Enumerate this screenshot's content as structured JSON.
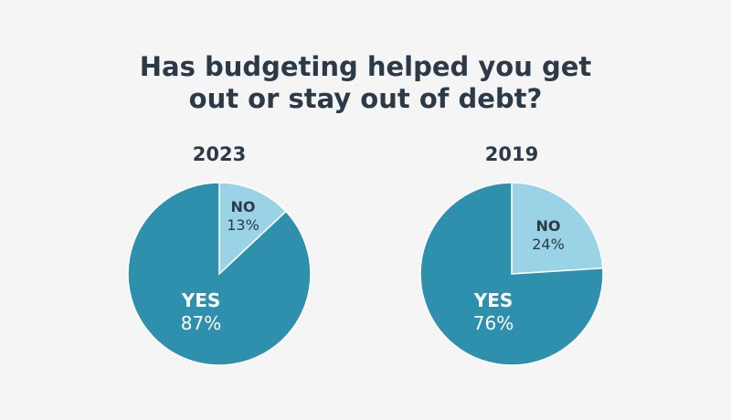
{
  "title_lines": [
    "Has budgeting helped you get",
    "out or stay out of debt?"
  ],
  "colors": {
    "yes": "#2f90ae",
    "no": "#9ad3e6",
    "dark_text": "#2b3a46",
    "light_text": "#ffffff",
    "background": "#f5f5f5"
  },
  "chart_data": [
    {
      "type": "pie",
      "title": "2023",
      "slices": [
        {
          "label": "NO",
          "value": 13,
          "display": "13%"
        },
        {
          "label": "YES",
          "value": 87,
          "display": "87%"
        }
      ]
    },
    {
      "type": "pie",
      "title": "2019",
      "slices": [
        {
          "label": "NO",
          "value": 24,
          "display": "24%"
        },
        {
          "label": "YES",
          "value": 76,
          "display": "76%"
        }
      ]
    }
  ]
}
